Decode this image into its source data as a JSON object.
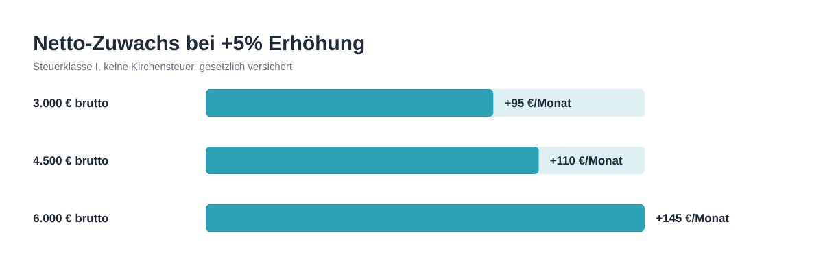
{
  "chart_data": {
    "type": "bar",
    "orientation": "horizontal",
    "title": "Netto-Zuwachs bei +5% Erhöhung",
    "subtitle": "Steuerklasse I, keine Kirchensteuer, gesetzlich versichert",
    "categories": [
      "3.000 € brutto",
      "4.500 € brutto",
      "6.000 € brutto"
    ],
    "values": [
      95,
      110,
      145
    ],
    "value_labels": [
      "+95 €/Monat",
      "+110 €/Monat",
      "+145 €/Monat"
    ],
    "color": "#2ca1b5",
    "xlim": [
      0,
      145
    ],
    "tick_labels": "y"
  }
}
